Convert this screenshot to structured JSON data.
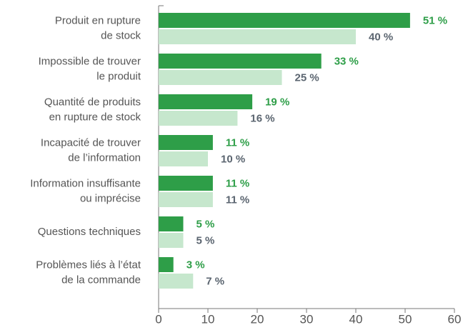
{
  "chart_data": {
    "type": "hbar",
    "categories": [
      [
        "Produit en rupture",
        "de stock"
      ],
      [
        "Impossible de trouver",
        "le produit"
      ],
      [
        "Quantité de produits",
        "en rupture de stock"
      ],
      [
        "Incapacité de trouver",
        "de l’information"
      ],
      [
        "Information insuffisante",
        "ou imprécise"
      ],
      [
        "Questions techniques"
      ],
      [
        "Problèmes liés à l’état",
        "de la commande"
      ]
    ],
    "series": [
      {
        "color": "#2e9e48",
        "label_color": "#2e9e48",
        "values": [
          51,
          33,
          19,
          11,
          11,
          5,
          3
        ],
        "value_labels": [
          "51 %",
          "33 %",
          "19 %",
          "11 %",
          "11 %",
          "5 %",
          "3 %"
        ]
      },
      {
        "color": "#c6e7cd",
        "label_color": "#5b6570",
        "values": [
          40,
          25,
          16,
          10,
          11,
          5,
          7
        ],
        "value_labels": [
          "40 %",
          "25 %",
          "16 %",
          "10 %",
          "11 %",
          "5 %",
          "7 %"
        ]
      }
    ],
    "xlim": [
      0,
      60
    ],
    "xticks": [
      0,
      10,
      20,
      30,
      40,
      50,
      60
    ]
  }
}
